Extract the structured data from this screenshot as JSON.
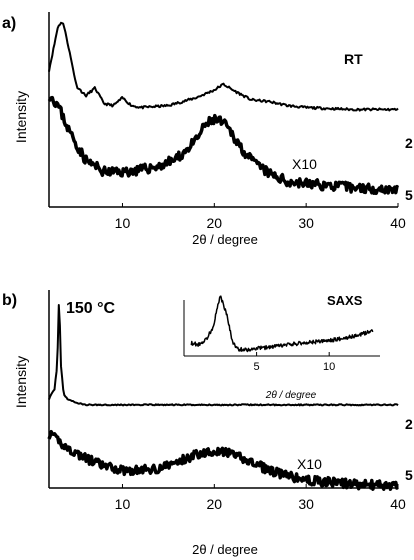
{
  "chart_data": [
    {
      "type": "line",
      "panel_label": "a)",
      "condition_label": "RT",
      "ylabel": "Intensity",
      "xlabel": "2θ / degree",
      "xlim": [
        2,
        40
      ],
      "xticks": [
        "10",
        "20",
        "30",
        "40"
      ],
      "annotation": "X10",
      "series": [
        {
          "name": "2",
          "x": [
            2,
            3,
            3.5,
            4,
            5,
            6,
            7,
            8,
            9,
            10,
            11,
            12,
            15,
            18,
            20,
            21,
            22,
            24,
            26,
            28,
            30,
            35,
            40
          ],
          "values": [
            0.7,
            0.93,
            0.95,
            0.85,
            0.62,
            0.57,
            0.61,
            0.53,
            0.52,
            0.56,
            0.52,
            0.51,
            0.52,
            0.56,
            0.6,
            0.63,
            0.6,
            0.55,
            0.54,
            0.52,
            0.51,
            0.5,
            0.5
          ]
        },
        {
          "name": "5",
          "x": [
            2,
            3,
            4,
            5,
            6,
            8,
            10,
            12,
            14,
            16,
            18,
            19,
            20,
            21,
            22,
            23,
            24,
            26,
            28,
            30,
            35,
            40
          ],
          "values": [
            0.58,
            0.52,
            0.41,
            0.32,
            0.24,
            0.18,
            0.18,
            0.19,
            0.21,
            0.25,
            0.34,
            0.42,
            0.45,
            0.43,
            0.37,
            0.3,
            0.24,
            0.17,
            0.13,
            0.12,
            0.1,
            0.09
          ]
        }
      ]
    },
    {
      "type": "line",
      "panel_label": "b)",
      "condition_label": "150 °C",
      "ylabel": "Intensity",
      "xlabel": "2θ / degree",
      "xlim": [
        2,
        40
      ],
      "xticks": [
        "10",
        "20",
        "30",
        "40"
      ],
      "annotation": "X10",
      "series": [
        {
          "name": "2",
          "x": [
            2,
            2.6,
            2.9,
            3.1,
            3.3,
            3.6,
            4,
            5,
            6,
            10,
            20,
            30,
            40
          ],
          "values": [
            0.45,
            0.5,
            0.62,
            0.98,
            0.62,
            0.47,
            0.45,
            0.43,
            0.42,
            0.42,
            0.42,
            0.42,
            0.42
          ]
        },
        {
          "name": "5",
          "x": [
            2,
            3,
            4,
            6,
            8,
            10,
            12,
            14,
            16,
            18,
            20,
            22,
            24,
            26,
            28,
            30,
            35,
            40
          ],
          "values": [
            0.27,
            0.24,
            0.2,
            0.15,
            0.11,
            0.09,
            0.09,
            0.1,
            0.13,
            0.17,
            0.19,
            0.17,
            0.13,
            0.09,
            0.06,
            0.04,
            0.02,
            0.01
          ]
        }
      ]
    },
    {
      "type": "line",
      "inset_label": "SAXS",
      "xlabel": "2θ / degree",
      "xlim": [
        0,
        13.5
      ],
      "xticks": [
        "5",
        "10"
      ],
      "series": [
        {
          "x": [
            0.5,
            1,
            1.5,
            2,
            2.5,
            3,
            3.3,
            3.6,
            4,
            4.5,
            5,
            6,
            7,
            8,
            9,
            10,
            11,
            12,
            13
          ],
          "values": [
            0.2,
            0.18,
            0.25,
            0.45,
            0.95,
            0.6,
            0.25,
            0.12,
            0.1,
            0.1,
            0.12,
            0.14,
            0.17,
            0.2,
            0.22,
            0.24,
            0.28,
            0.32,
            0.4
          ]
        }
      ]
    }
  ],
  "side_labels": {
    "a_top": "2",
    "a_bottom": "5",
    "b_top": "2",
    "b_bottom": "5"
  }
}
